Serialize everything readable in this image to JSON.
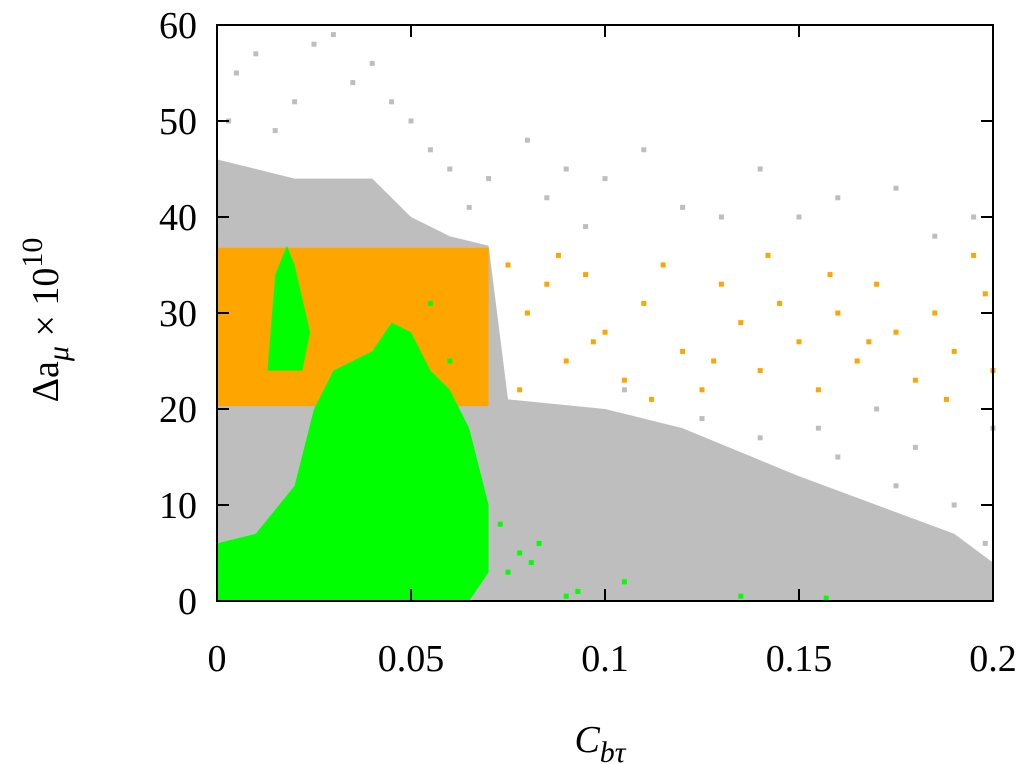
{
  "chart_data": {
    "type": "scatter",
    "xlabel": {
      "base": "C",
      "sub": "bτ"
    },
    "ylabel": {
      "base": "Δa",
      "sub": "μ",
      "mid": " × 10",
      "sup": "10"
    },
    "xlim": [
      0,
      0.2
    ],
    "ylim": [
      0,
      60
    ],
    "xticks": [
      0,
      0.05,
      0.1,
      0.15,
      0.2
    ],
    "yticks": [
      0,
      10,
      20,
      30,
      40,
      50,
      60
    ],
    "series": [
      {
        "color": "#bebebe",
        "mode": "region",
        "x": [
          0,
          0,
          0.02,
          0.04,
          0.05,
          0.06,
          0.07,
          0.075,
          0.1,
          0.12,
          0.15,
          0.17,
          0.19,
          0.2,
          0.2
        ],
        "y": [
          0,
          46,
          44,
          44,
          40,
          38,
          37,
          21,
          20,
          18,
          13,
          10,
          7,
          4,
          0
        ]
      },
      {
        "color": "#bebebe",
        "mode": "points",
        "x": [
          0.005,
          0.01,
          0.02,
          0.025,
          0.03,
          0.035,
          0.04,
          0.045,
          0.05,
          0.055,
          0.06,
          0.07,
          0.08,
          0.085,
          0.09,
          0.1,
          0.11,
          0.12,
          0.13,
          0.14,
          0.15,
          0.16,
          0.175,
          0.185,
          0.195,
          0.003,
          0.015,
          0.065,
          0.095,
          0.105,
          0.125,
          0.14,
          0.16,
          0.175,
          0.19,
          0.198,
          0.195,
          0.185,
          0.2,
          0.17,
          0.155,
          0.18
        ],
        "y": [
          55,
          57,
          52,
          58,
          59,
          54,
          56,
          52,
          50,
          47,
          45,
          44,
          48,
          42,
          45,
          44,
          47,
          41,
          40,
          45,
          40,
          42,
          43,
          38,
          40,
          50,
          49,
          41,
          39,
          22,
          19,
          17,
          15,
          12,
          10,
          6,
          2,
          1,
          18,
          20,
          18,
          16
        ]
      },
      {
        "color": "#ffa500",
        "mode": "region",
        "x": [
          0,
          0,
          0.07,
          0.07
        ],
        "y": [
          20.3,
          36.8,
          36.8,
          20.3
        ]
      },
      {
        "color": "#ffa500",
        "mode": "points",
        "x": [
          0.075,
          0.08,
          0.085,
          0.09,
          0.095,
          0.1,
          0.105,
          0.11,
          0.115,
          0.12,
          0.125,
          0.13,
          0.135,
          0.14,
          0.145,
          0.15,
          0.155,
          0.16,
          0.165,
          0.17,
          0.175,
          0.18,
          0.185,
          0.19,
          0.195,
          0.2,
          0.198,
          0.188,
          0.168,
          0.158,
          0.142,
          0.128,
          0.112,
          0.097,
          0.088,
          0.078
        ],
        "y": [
          35,
          30,
          33,
          25,
          34,
          28,
          23,
          31,
          35,
          26,
          22,
          33,
          29,
          24,
          31,
          27,
          22,
          30,
          25,
          33,
          28,
          23,
          30,
          26,
          36,
          24,
          32,
          21,
          27,
          34,
          36,
          25,
          21,
          27,
          36,
          22
        ]
      },
      {
        "color": "#00ff00",
        "mode": "region",
        "x": [
          0,
          0,
          0.01,
          0.02,
          0.025,
          0.03,
          0.04,
          0.045,
          0.05,
          0.055,
          0.06,
          0.065,
          0.07,
          0.07,
          0.065
        ],
        "y": [
          0,
          6,
          7,
          12,
          20,
          24,
          26,
          29,
          28,
          24,
          22,
          18,
          10,
          3,
          0
        ]
      },
      {
        "color": "#00ff00",
        "mode": "region",
        "x": [
          0.013,
          0.015,
          0.018,
          0.02,
          0.024,
          0.022
        ],
        "y": [
          24,
          34,
          37,
          35,
          28,
          24
        ]
      },
      {
        "color": "#00ff00",
        "mode": "points",
        "x": [
          0.073,
          0.075,
          0.078,
          0.081,
          0.083,
          0.09,
          0.093,
          0.105,
          0.135,
          0.157,
          0.055,
          0.06
        ],
        "y": [
          8,
          3,
          5,
          4,
          6,
          0.5,
          1,
          2,
          0.5,
          0.3,
          31,
          25
        ]
      }
    ]
  }
}
